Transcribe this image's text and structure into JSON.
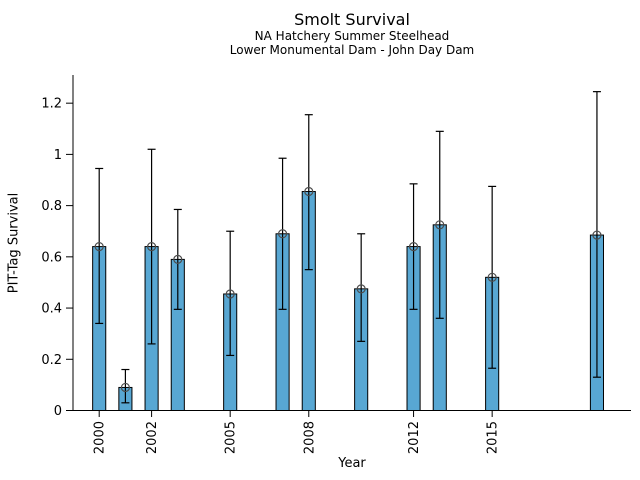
{
  "chart_data": {
    "type": "bar",
    "title": "Smolt Survival",
    "subtitle1": "NA Hatchery Summer Steelhead",
    "subtitle2": "Lower Monumental Dam - John Day Dam",
    "xlabel": "Year",
    "ylabel": "PIT-Tag Survival",
    "x": [
      2000,
      2001,
      2002,
      2003,
      2005,
      2007,
      2008,
      2010,
      2012,
      2013,
      2015,
      2019
    ],
    "values": [
      0.64,
      0.09,
      0.64,
      0.59,
      0.455,
      0.69,
      0.855,
      0.475,
      0.64,
      0.725,
      0.52,
      0.685
    ],
    "err_low": [
      0.34,
      0.03,
      0.26,
      0.395,
      0.215,
      0.395,
      0.55,
      0.27,
      0.395,
      0.36,
      0.165,
      0.13
    ],
    "err_high": [
      0.945,
      0.16,
      1.02,
      0.785,
      0.7,
      0.985,
      1.155,
      0.69,
      0.885,
      1.09,
      0.875,
      1.245
    ],
    "xtick_values": [
      2000,
      2002,
      2005,
      2008,
      2012,
      2015
    ],
    "xtick_labels": [
      "2000",
      "2002",
      "2005",
      "2008",
      "2012",
      "2015"
    ],
    "ytick_values": [
      0,
      0.2,
      0.4,
      0.6,
      0.8,
      1.0,
      1.2
    ],
    "ytick_labels": [
      "0",
      "0.2",
      "0.4",
      "0.6",
      "0.8",
      "1",
      "1.2"
    ],
    "xlim": [
      1999.0,
      2020.3
    ],
    "ylim": [
      0,
      1.31
    ],
    "bar_width_years": 0.5,
    "grid": false,
    "legend": null,
    "colors": {
      "bar_fill": "#58a7d3",
      "bar_edge": "#000000",
      "error_bar": "#000000",
      "marker_edge": "#4d4d4d",
      "axis": "#000000",
      "text": "#000000",
      "background": "#ffffff"
    }
  }
}
